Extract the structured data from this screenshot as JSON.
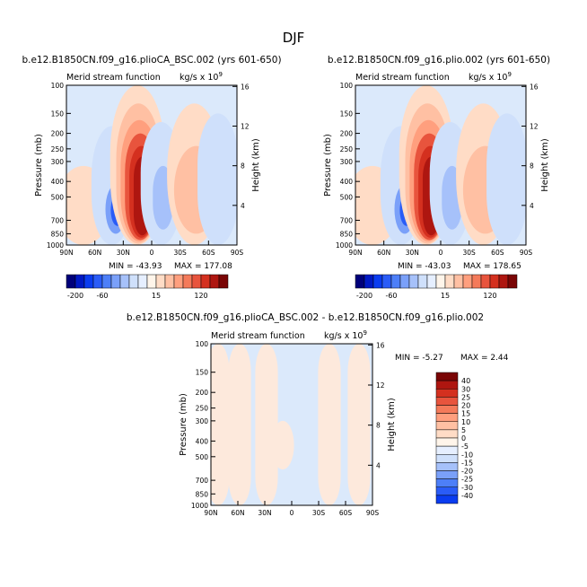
{
  "figure": {
    "title": "DJF"
  },
  "chart_data": [
    {
      "type": "heatmap",
      "title": "b.e12.B1850CN.f09_g16.plioCA_BSC.002 (yrs 601-650)",
      "subtitle_left": "Merid stream function",
      "subtitle_right_units": "kg/s x 10",
      "units_exponent": "9",
      "ylabel": "Pressure (mb)",
      "y2label": "Height (km)",
      "x_ticks": [
        "90N",
        "60N",
        "30N",
        "0",
        "30S",
        "60S",
        "90S"
      ],
      "y_ticks": [
        "100",
        "150",
        "200",
        "250",
        "300",
        "400",
        "500",
        "700",
        "850",
        "1000"
      ],
      "y2_ticks": [
        "16",
        "12",
        "8",
        "4"
      ],
      "min_label": "MIN = -43.93",
      "max_label": "MAX = 177.08",
      "min": -43.93,
      "max": 177.08,
      "cells": [
        {
          "lat": 72,
          "pmin": 320,
          "pmax": 1000,
          "value": 5
        },
        {
          "lat": 42,
          "pmin": 180,
          "pmax": 1000,
          "value": -5
        },
        {
          "lat": 38,
          "pmin": 420,
          "pmax": 850,
          "value": -20
        },
        {
          "lat": 36,
          "pmin": 480,
          "pmax": 760,
          "value": -40
        },
        {
          "lat": 15,
          "pmin": 100,
          "pmax": 1000,
          "value": 5
        },
        {
          "lat": 14,
          "pmin": 130,
          "pmax": 980,
          "value": 15
        },
        {
          "lat": 13,
          "pmin": 165,
          "pmax": 950,
          "value": 40
        },
        {
          "lat": 12,
          "pmin": 200,
          "pmax": 930,
          "value": 80
        },
        {
          "lat": 11,
          "pmin": 240,
          "pmax": 900,
          "value": 120
        },
        {
          "lat": 10,
          "pmin": 280,
          "pmax": 870,
          "value": 160
        },
        {
          "lat": -10,
          "pmin": 170,
          "pmax": 1000,
          "value": -5
        },
        {
          "lat": -12,
          "pmin": 320,
          "pmax": 800,
          "value": -10
        },
        {
          "lat": -45,
          "pmin": 130,
          "pmax": 1000,
          "value": 5
        },
        {
          "lat": -47,
          "pmin": 240,
          "pmax": 850,
          "value": 15
        },
        {
          "lat": -70,
          "pmin": 150,
          "pmax": 1000,
          "value": -5
        }
      ]
    },
    {
      "type": "heatmap",
      "title": "b.e12.B1850CN.f09_g16.plio.002 (yrs 601-650)",
      "subtitle_left": "Merid stream function",
      "subtitle_right_units": "kg/s x 10",
      "units_exponent": "9",
      "ylabel": "Pressure (mb)",
      "y2label": "Height (km)",
      "x_ticks": [
        "90N",
        "60N",
        "30N",
        "0",
        "30S",
        "60S",
        "90S"
      ],
      "y_ticks": [
        "100",
        "150",
        "200",
        "250",
        "300",
        "400",
        "500",
        "700",
        "850",
        "1000"
      ],
      "y2_ticks": [
        "16",
        "12",
        "8",
        "4"
      ],
      "min_label": "MIN = -43.03",
      "max_label": "MAX = 178.65",
      "min": -43.03,
      "max": 178.65,
      "cells": [
        {
          "lat": 72,
          "pmin": 320,
          "pmax": 1000,
          "value": 5
        },
        {
          "lat": 42,
          "pmin": 180,
          "pmax": 1000,
          "value": -5
        },
        {
          "lat": 38,
          "pmin": 420,
          "pmax": 850,
          "value": -20
        },
        {
          "lat": 36,
          "pmin": 480,
          "pmax": 760,
          "value": -40
        },
        {
          "lat": 15,
          "pmin": 100,
          "pmax": 1000,
          "value": 5
        },
        {
          "lat": 14,
          "pmin": 130,
          "pmax": 980,
          "value": 15
        },
        {
          "lat": 13,
          "pmin": 165,
          "pmax": 950,
          "value": 40
        },
        {
          "lat": 12,
          "pmin": 200,
          "pmax": 930,
          "value": 80
        },
        {
          "lat": 11,
          "pmin": 240,
          "pmax": 900,
          "value": 120
        },
        {
          "lat": 10,
          "pmin": 280,
          "pmax": 870,
          "value": 160
        },
        {
          "lat": -10,
          "pmin": 170,
          "pmax": 1000,
          "value": -5
        },
        {
          "lat": -12,
          "pmin": 320,
          "pmax": 800,
          "value": -10
        },
        {
          "lat": -45,
          "pmin": 130,
          "pmax": 1000,
          "value": 5
        },
        {
          "lat": -47,
          "pmin": 240,
          "pmax": 850,
          "value": 15
        },
        {
          "lat": -70,
          "pmin": 150,
          "pmax": 1000,
          "value": -5
        }
      ]
    },
    {
      "type": "heatmap",
      "title": "b.e12.B1850CN.f09_g16.plioCA_BSC.002 - b.e12.B1850CN.f09_g16.plio.002",
      "subtitle_left": "Merid stream function",
      "subtitle_right_units": "kg/s x 10",
      "units_exponent": "9",
      "ylabel": "Pressure (mb)",
      "y2label": "Height (km)",
      "x_ticks": [
        "90N",
        "60N",
        "30N",
        "0",
        "30S",
        "60S",
        "90S"
      ],
      "y_ticks": [
        "100",
        "150",
        "200",
        "250",
        "300",
        "400",
        "500",
        "700",
        "850",
        "1000"
      ],
      "y2_ticks": [
        "16",
        "12",
        "8",
        "4"
      ],
      "min_label": "MIN = -5.27",
      "max_label": "MAX = 2.44",
      "min": -5.27,
      "max": 2.44,
      "cells": [
        {
          "lat": 82,
          "pmin": 100,
          "pmax": 1000,
          "value": 0.5
        },
        {
          "lat": 58,
          "pmin": 100,
          "pmax": 1000,
          "value": 0.5
        },
        {
          "lat": 28,
          "pmin": 100,
          "pmax": 1000,
          "value": 0.5
        },
        {
          "lat": 10,
          "pmin": 300,
          "pmax": 600,
          "value": 0.5
        },
        {
          "lat": -42,
          "pmin": 100,
          "pmax": 1000,
          "value": 0.5
        },
        {
          "lat": -75,
          "pmin": 100,
          "pmax": 1000,
          "value": 0.5
        }
      ]
    }
  ],
  "colorbar_horizontal": {
    "labels": [
      "-200",
      "-60",
      "15",
      "120"
    ],
    "colors": [
      "#00007a",
      "#0019c4",
      "#0a3cf0",
      "#2a5cf7",
      "#4d7ff8",
      "#7aa0f9",
      "#a6c1fa",
      "#cfe0fb",
      "#e6efff",
      "#fff5ea",
      "#ffdcc6",
      "#ffc0a3",
      "#ff9f7e",
      "#f47a5a",
      "#e8543d",
      "#d4301f",
      "#ae1610",
      "#7a0505"
    ]
  },
  "colorbar_vertical": {
    "labels": [
      "40",
      "30",
      "25",
      "20",
      "15",
      "10",
      "5",
      "0",
      "-5",
      "-10",
      "-15",
      "-20",
      "-25",
      "-30",
      "-40"
    ],
    "colors": [
      "#7a0505",
      "#ae1610",
      "#d4301f",
      "#e8543d",
      "#f47a5a",
      "#ff9f7e",
      "#ffc0a3",
      "#ffdcc6",
      "#fff5ea",
      "#e6efff",
      "#cfe0fb",
      "#a6c1fa",
      "#7aa0f9",
      "#4d7ff8",
      "#2a5cf7",
      "#0a3cf0"
    ]
  }
}
